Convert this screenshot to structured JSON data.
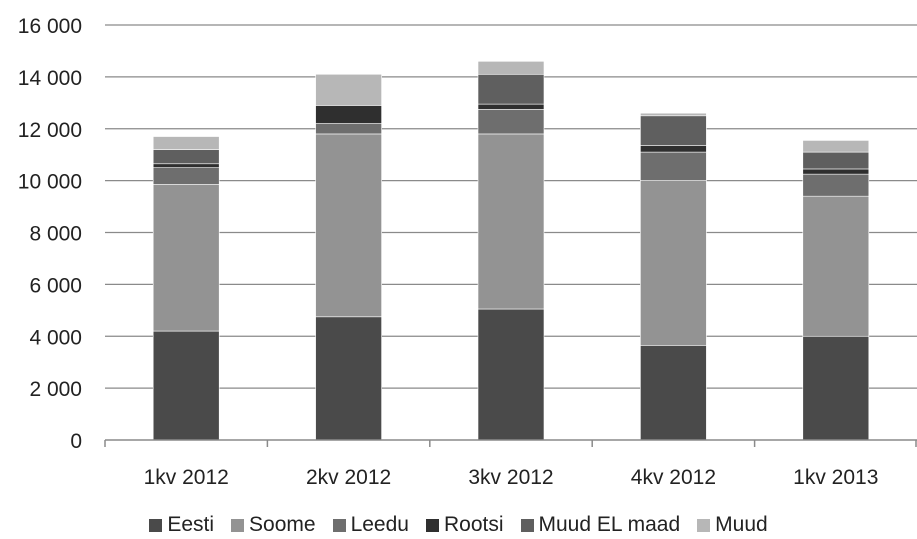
{
  "chart_data": {
    "type": "bar",
    "stacked": true,
    "categories": [
      "1kv 2012",
      "2kv 2012",
      "3kv 2012",
      "4kv 2012",
      "1kv 2013"
    ],
    "ylim": [
      0,
      16000
    ],
    "yticks": [
      0,
      2000,
      4000,
      6000,
      8000,
      10000,
      12000,
      14000,
      16000
    ],
    "ytick_labels": [
      "0",
      "2 000",
      "4 000",
      "6 000",
      "8 000",
      "10 000",
      "12 000",
      "14 000",
      "16 000"
    ],
    "grid": true,
    "legend_position": "bottom",
    "series": [
      {
        "name": "Eesti",
        "color": "#4a4a4a",
        "values": [
          4200,
          4750,
          5050,
          3650,
          4000
        ]
      },
      {
        "name": "Soome",
        "color": "#939393",
        "values": [
          5650,
          7050,
          6750,
          6350,
          5400
        ]
      },
      {
        "name": "Leedu",
        "color": "#6e6e6e",
        "values": [
          650,
          400,
          950,
          1100,
          850
        ]
      },
      {
        "name": "Rootsi",
        "color": "#2f2f2f",
        "values": [
          150,
          700,
          200,
          250,
          200
        ]
      },
      {
        "name": "Muud EL maad",
        "color": "#5f5f5f",
        "values": [
          550,
          0,
          1150,
          1150,
          650
        ]
      },
      {
        "name": "Muud",
        "color": "#b7b7b7",
        "values": [
          500,
          1200,
          500,
          100,
          450
        ]
      }
    ]
  }
}
